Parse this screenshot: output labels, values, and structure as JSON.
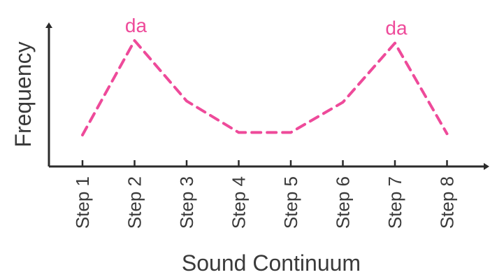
{
  "chart_data": {
    "type": "line",
    "title": "",
    "xlabel": "Sound Continuum",
    "ylabel": "Frequency",
    "categories": [
      "Step 1",
      "Step 2",
      "Step 3",
      "Step 4",
      "Step 5",
      "Step 6",
      "Step 7",
      "Step 8"
    ],
    "series": [
      {
        "values": [
          0.25,
          1.0,
          0.52,
          0.27,
          0.27,
          0.51,
          0.98,
          0.26
        ],
        "color": "#ee4a9a",
        "line_style": "dashed"
      }
    ],
    "annotations": [
      {
        "text": "da",
        "category": "Step 2",
        "color": "#ee4a9a"
      },
      {
        "text": "da",
        "category": "Step 7",
        "color": "#ee4a9a"
      }
    ],
    "ylim": [
      0,
      1.12
    ],
    "y_ticks_shown": false,
    "grid": false
  }
}
